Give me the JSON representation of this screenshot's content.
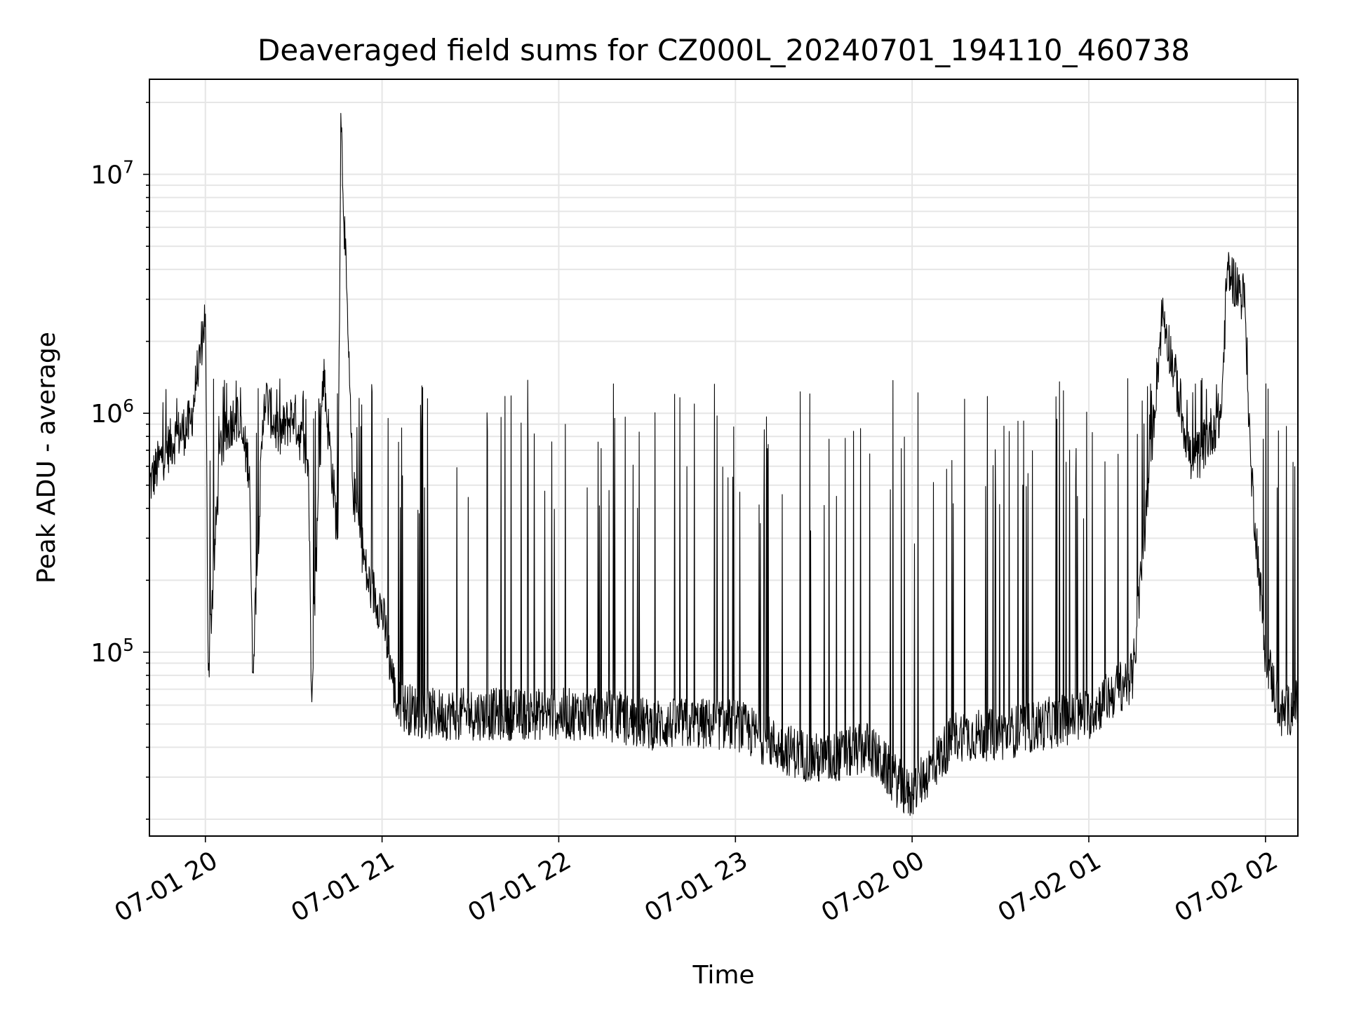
{
  "chart_data": {
    "type": "line",
    "title": "Deaveraged field sums for CZ000L_20240701_194110_460738",
    "xlabel": "Time",
    "ylabel": "Peak ADU - average",
    "x_axis": {
      "kind": "datetime",
      "range": [
        "2024-07-01 19:41",
        "2024-07-02 02:11"
      ],
      "ticks": [
        "2024-07-01 20:00",
        "2024-07-01 21:00",
        "2024-07-01 22:00",
        "2024-07-01 23:00",
        "2024-07-02 00:00",
        "2024-07-02 01:00",
        "2024-07-02 02:00"
      ],
      "tick_labels": [
        "07-01 20",
        "07-01 21",
        "07-01 22",
        "07-01 23",
        "07-02 00",
        "07-02 01",
        "07-02 02"
      ]
    },
    "y_axis": {
      "scale": "log",
      "ylim": [
        17000,
        25000000
      ],
      "major_ticks": [
        100000,
        1000000,
        10000000
      ],
      "tick_labels": [
        {
          "base": "10",
          "exp": "5"
        },
        {
          "base": "10",
          "exp": "6"
        },
        {
          "base": "10",
          "exp": "7"
        }
      ]
    },
    "grid": true,
    "line_color": "#000000",
    "series": [
      {
        "values": [
          [
            "2024-07-01 19:41",
            500000
          ],
          [
            "2024-07-01 19:45",
            650000
          ],
          [
            "2024-07-01 19:50",
            800000
          ],
          [
            "2024-07-01 19:55",
            900000
          ],
          [
            "2024-07-01 20:00",
            2600000
          ],
          [
            "2024-07-01 20:01",
            84000
          ],
          [
            "2024-07-01 20:05",
            700000
          ],
          [
            "2024-07-01 20:10",
            1000000
          ],
          [
            "2024-07-01 20:15",
            600000
          ],
          [
            "2024-07-01 20:16",
            82000
          ],
          [
            "2024-07-01 20:20",
            1200000
          ],
          [
            "2024-07-01 20:25",
            800000
          ],
          [
            "2024-07-01 20:30",
            1000000
          ],
          [
            "2024-07-01 20:35",
            600000
          ],
          [
            "2024-07-01 20:36",
            70000
          ],
          [
            "2024-07-01 20:40",
            1500000
          ],
          [
            "2024-07-01 20:45",
            300000
          ],
          [
            "2024-07-01 20:46",
            18000000
          ],
          [
            "2024-07-01 20:50",
            500000
          ],
          [
            "2024-07-01 20:55",
            200000
          ],
          [
            "2024-07-01 21:00",
            150000
          ],
          [
            "2024-07-01 21:05",
            60000
          ],
          [
            "2024-07-01 21:15",
            55000
          ],
          [
            "2024-07-01 21:30",
            55000
          ],
          [
            "2024-07-01 21:45",
            55000
          ],
          [
            "2024-07-01 22:00",
            55000
          ],
          [
            "2024-07-01 22:15",
            55000
          ],
          [
            "2024-07-01 22:30",
            50000
          ],
          [
            "2024-07-01 22:45",
            50000
          ],
          [
            "2024-07-01 23:00",
            50000
          ],
          [
            "2024-07-01 23:15",
            40000
          ],
          [
            "2024-07-01 23:30",
            35000
          ],
          [
            "2024-07-01 23:45",
            40000
          ],
          [
            "2024-07-01 23:59",
            25000
          ],
          [
            "2024-07-02 00:15",
            45000
          ],
          [
            "2024-07-02 00:30",
            45000
          ],
          [
            "2024-07-02 00:45",
            50000
          ],
          [
            "2024-07-02 01:00",
            55000
          ],
          [
            "2024-07-02 01:15",
            80000
          ],
          [
            "2024-07-02 01:25",
            2700000
          ],
          [
            "2024-07-02 01:35",
            600000
          ],
          [
            "2024-07-02 01:45",
            1000000
          ],
          [
            "2024-07-02 01:47",
            4000000
          ],
          [
            "2024-07-02 01:53",
            3000000
          ],
          [
            "2024-07-02 01:55",
            600000
          ],
          [
            "2024-07-02 01:58",
            200000
          ],
          [
            "2024-07-02 02:00",
            100000
          ],
          [
            "2024-07-02 02:05",
            55000
          ],
          [
            "2024-07-02 02:11",
            60000
          ]
        ]
      }
    ]
  }
}
